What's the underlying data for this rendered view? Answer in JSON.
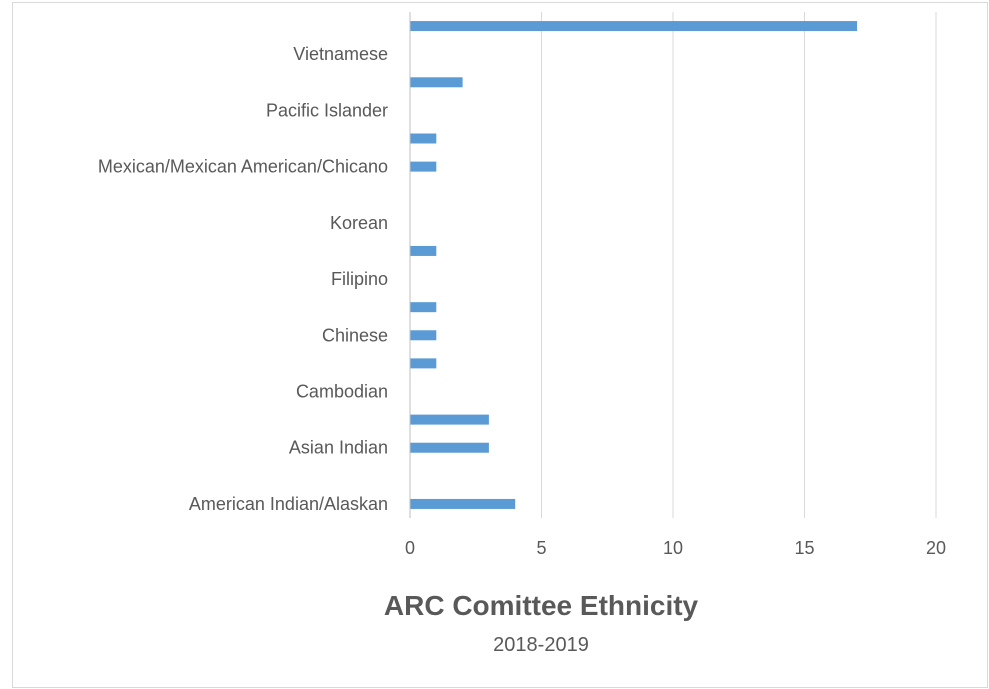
{
  "chart_data": {
    "type": "bar",
    "orientation": "horizontal",
    "title": "ARC Comittee Ethnicity",
    "subtitle": "2018-2019",
    "xlabel": "",
    "ylabel": "",
    "xlim": [
      0,
      20
    ],
    "x_ticks": [
      0,
      5,
      10,
      15,
      20
    ],
    "grid": "vertical",
    "legend": "none",
    "bar_color": "#5b9bd5",
    "categories": [
      "American Indian/Alaskan",
      "",
      "Asian Indian",
      "",
      "Cambodian",
      "",
      "Chinese",
      "",
      "Filipino",
      "",
      "Korean",
      "",
      "Mexican/Mexican American/Chicano",
      "",
      "Pacific Islander",
      "",
      "Vietnamese",
      ""
    ],
    "values": [
      4,
      0,
      3,
      3,
      0,
      1,
      1,
      1,
      0,
      1,
      0,
      0,
      1,
      1,
      0,
      2,
      0,
      17
    ]
  }
}
